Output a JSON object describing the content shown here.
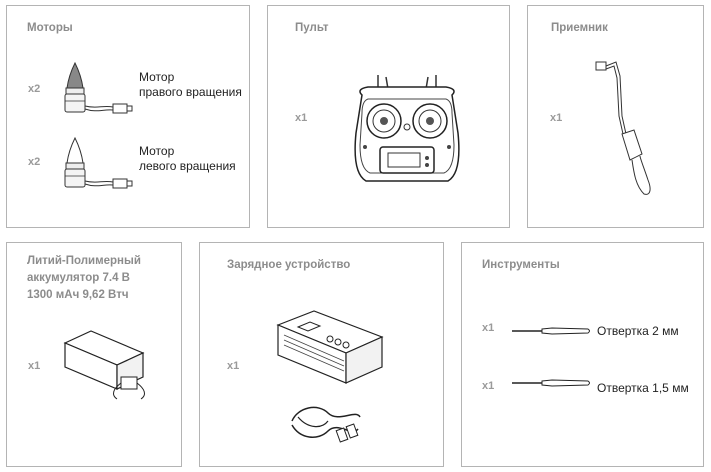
{
  "cards": {
    "motors": {
      "title": "Моторы",
      "items": [
        {
          "qty": "x2",
          "label_line1": "Мотор",
          "label_line2": "правого вращения"
        },
        {
          "qty": "x2",
          "label_line1": "Мотор",
          "label_line2": "левого вращения"
        }
      ]
    },
    "remote": {
      "title": "Пульт",
      "qty": "x1"
    },
    "receiver": {
      "title": "Приемник",
      "qty": "x1"
    },
    "battery": {
      "title_line1": "Литий-Полимерный",
      "title_line2": "аккумулятор 7.4 В",
      "title_line3": "1300 мАч 9,62 Втч",
      "qty": "x1"
    },
    "charger": {
      "title": "Зарядное устройство",
      "qty": "x1"
    },
    "tools": {
      "title": "Инструменты",
      "items": [
        {
          "qty": "x1",
          "label": "Отвертка 2 мм"
        },
        {
          "qty": "x1",
          "label": "Отвертка 1,5 мм"
        }
      ]
    }
  }
}
